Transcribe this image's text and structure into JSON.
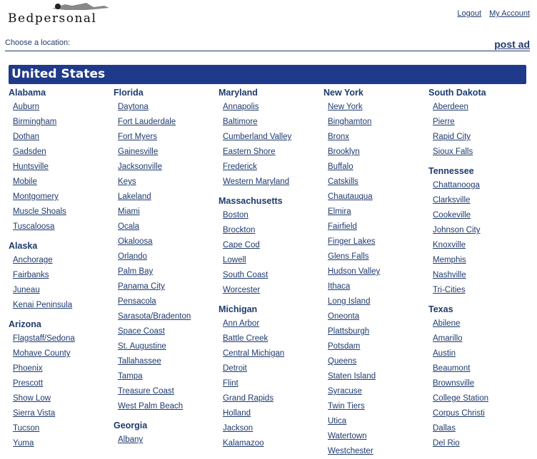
{
  "header": {
    "logo_text": "Bedpersonal",
    "logout": "Logout",
    "my_account": "My Account"
  },
  "toolbar": {
    "choose": "Choose a location:",
    "post_ad": "post ad"
  },
  "country": "United States",
  "colors": {
    "band": "#1f3a8a",
    "text": "#1f3a6e"
  },
  "columns": [
    [
      {
        "state": "Alabama",
        "cities": [
          "Auburn",
          "Birmingham",
          "Dothan",
          "Gadsden",
          "Huntsville",
          "Mobile",
          "Montgomery",
          "Muscle Shoals",
          "Tuscaloosa"
        ]
      },
      {
        "state": "Alaska",
        "cities": [
          "Anchorage",
          "Fairbanks",
          "Juneau",
          "Kenai Peninsula"
        ]
      },
      {
        "state": "Arizona",
        "cities": [
          "Flagstaff/Sedona",
          "Mohave County",
          "Phoenix",
          "Prescott",
          "Show Low",
          "Sierra Vista",
          "Tucson",
          "Yuma"
        ]
      }
    ],
    [
      {
        "state": "Florida",
        "cities": [
          "Daytona",
          "Fort Lauderdale",
          "Fort Myers",
          "Gainesville",
          "Jacksonville",
          "Keys",
          "Lakeland",
          "Miami",
          "Ocala",
          "Okaloosa",
          "Orlando",
          "Palm Bay",
          "Panama City",
          "Pensacola",
          "Sarasota/Bradenton",
          "Space Coast",
          "St. Augustine",
          "Tallahassee",
          "Tampa",
          "Treasure Coast",
          "West Palm Beach"
        ]
      },
      {
        "state": "Georgia",
        "cities": [
          "Albany"
        ]
      }
    ],
    [
      {
        "state": "Maryland",
        "cities": [
          "Annapolis",
          "Baltimore",
          "Cumberland Valley",
          "Eastern Shore",
          "Frederick",
          "Western Maryland"
        ]
      },
      {
        "state": "Massachusetts",
        "cities": [
          "Boston",
          "Brockton",
          "Cape Cod",
          "Lowell",
          "South Coast",
          "Worcester"
        ]
      },
      {
        "state": "Michigan",
        "cities": [
          "Ann Arbor",
          "Battle Creek",
          "Central Michigan",
          "Detroit",
          "Flint",
          "Grand Rapids",
          "Holland",
          "Jackson",
          "Kalamazoo"
        ]
      }
    ],
    [
      {
        "state": "New York",
        "cities": [
          "New York",
          "Binghamton",
          "Bronx",
          "Brooklyn",
          "Buffalo",
          "Catskills",
          "Chautauqua",
          "Elmira",
          "Fairfield",
          "Finger Lakes",
          "Glens Falls",
          "Hudson Valley",
          "Ithaca",
          "Long Island",
          "Oneonta",
          "Plattsburgh",
          "Potsdam",
          "Queens",
          "Staten Island",
          "Syracuse",
          "Twin Tiers",
          "Utica",
          "Watertown",
          "Westchester"
        ]
      }
    ],
    [
      {
        "state": "South Dakota",
        "cities": [
          "Aberdeen",
          "Pierre",
          "Rapid City",
          "Sioux Falls"
        ]
      },
      {
        "state": "Tennessee",
        "cities": [
          "Chattanooga",
          "Clarksville",
          "Cookeville",
          "Johnson City",
          "Knoxville",
          "Memphis",
          "Nashville",
          "Tri-Cities"
        ]
      },
      {
        "state": "Texas",
        "cities": [
          "Abilene",
          "Amarillo",
          "Austin",
          "Beaumont",
          "Brownsville",
          "College Station",
          "Corpus Christi",
          "Dallas",
          "Del Rio"
        ]
      }
    ]
  ]
}
